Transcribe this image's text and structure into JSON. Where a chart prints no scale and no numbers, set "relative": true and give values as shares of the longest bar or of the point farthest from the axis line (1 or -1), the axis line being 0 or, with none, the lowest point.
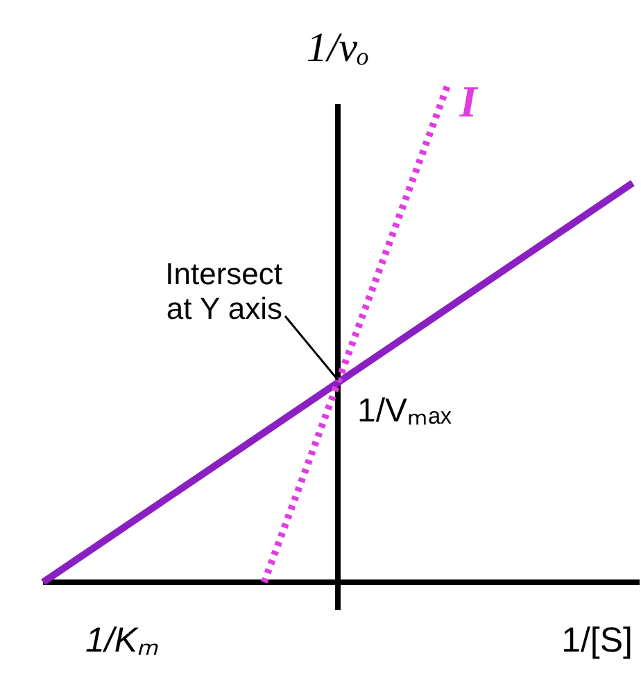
{
  "chart_data": {
    "type": "line",
    "relative": true,
    "ylabel": "1/vₒ",
    "xlabel": "1/[S]",
    "categories": [
      null,
      null,
      null,
      null,
      null,
      null,
      null,
      null,
      null,
      null,
      null,
      null,
      null,
      null,
      null,
      null,
      null
    ],
    "series": [
      {
        "color": "#8a1fc2",
        "line_style": "solid",
        "values": [
          0,
          0.05,
          0.1,
          0.15,
          0.2,
          0.25,
          0.3,
          0.35,
          0.4,
          0.45,
          0.5,
          0.55,
          0.6,
          0.65,
          0.7,
          0.75,
          0.8
        ]
      },
      {
        "name": "I",
        "color": "#e03ce0",
        "line_style": "dotted",
        "values": [
          null,
          null,
          null,
          null,
          null,
          null,
          0,
          0.2,
          0.4,
          0.6,
          0.8,
          1.0,
          null,
          null,
          null,
          null,
          null
        ]
      }
    ],
    "annotations": [
      "1/Kₘ",
      "1/Vₘₐₓ",
      "Intersect at Y axis"
    ],
    "grid": false,
    "legend": false,
    "marker": "none"
  }
}
